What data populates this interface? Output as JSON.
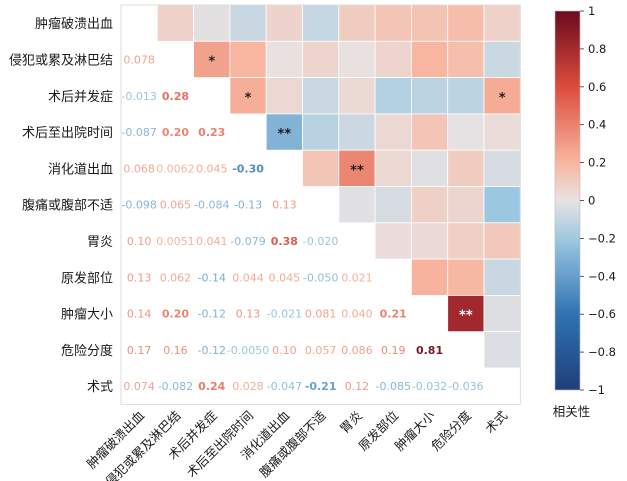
{
  "chart_data": {
    "type": "heatmap",
    "title": "",
    "variables": [
      "肿瘤破溃出血",
      "侵犯或累及淋巴结",
      "术后并发症",
      "术后至出院时间",
      "消化道出血",
      "腹痛或腹部不适",
      "胃炎",
      "原发部位",
      "肿瘤大小",
      "危险分度",
      "术式"
    ],
    "lower_labels": [
      [
        null,
        null,
        null,
        null,
        null,
        null,
        null,
        null,
        null,
        null,
        null
      ],
      [
        "0.078",
        null,
        null,
        null,
        null,
        null,
        null,
        null,
        null,
        null,
        null
      ],
      [
        "-0.013",
        "0.28",
        null,
        null,
        null,
        null,
        null,
        null,
        null,
        null,
        null
      ],
      [
        "-0.087",
        "0.20",
        "0.23",
        null,
        null,
        null,
        null,
        null,
        null,
        null,
        null
      ],
      [
        "0.068",
        "0.0062",
        "0.045",
        "-0.30",
        null,
        null,
        null,
        null,
        null,
        null,
        null
      ],
      [
        "-0.098",
        "0.065",
        "-0.084",
        "-0.13",
        "0.13",
        null,
        null,
        null,
        null,
        null,
        null
      ],
      [
        "0.10",
        "0.0051",
        "0.041",
        "-0.079",
        "0.38",
        "-0.020",
        null,
        null,
        null,
        null,
        null
      ],
      [
        "0.13",
        "0.062",
        "-0.14",
        "0.044",
        "0.045",
        "-0.050",
        "0.021",
        null,
        null,
        null,
        null
      ],
      [
        "0.14",
        "0.20",
        "-0.12",
        "0.13",
        "-0.021",
        "0.081",
        "0.040",
        "0.21",
        null,
        null,
        null
      ],
      [
        "0.17",
        "0.16",
        "-0.12",
        "-0.0050",
        "0.10",
        "0.057",
        "0.086",
        "0.19",
        "0.81",
        null,
        null
      ],
      [
        "0.074",
        "-0.082",
        "0.24",
        "0.028",
        "-0.047",
        "-0.21",
        "0.12",
        "-0.085",
        "-0.032",
        "-0.036",
        null
      ]
    ],
    "stars": [
      {
        "row": 1,
        "col": 2,
        "label": "*"
      },
      {
        "row": 2,
        "col": 3,
        "label": "*"
      },
      {
        "row": 2,
        "col": 10,
        "label": "*"
      },
      {
        "row": 3,
        "col": 4,
        "label": "**"
      },
      {
        "row": 4,
        "col": 6,
        "label": "**"
      },
      {
        "row": 8,
        "col": 9,
        "label": "**"
      }
    ],
    "colorbar": {
      "label": "相关性",
      "min": -1,
      "max": 1,
      "ticks": [
        "1",
        "0.8",
        "0.6",
        "0.4",
        "0.2",
        "0",
        "−0.2",
        "−0.4",
        "−0.6",
        "−0.8",
        "−1"
      ],
      "tick_values": [
        1,
        0.8,
        0.6,
        0.4,
        0.2,
        0,
        -0.2,
        -0.4,
        -0.6,
        -0.8,
        -1
      ]
    },
    "palette": {
      "neg": "#1f3f7a",
      "neg_mid": "#2f72b3",
      "neg_light": "#9ec9e1",
      "zero": "#e8e2e2",
      "pos_light": "#f8b6a0",
      "pos_mid": "#dc4c3d",
      "pos": "#6b0a1f"
    }
  }
}
